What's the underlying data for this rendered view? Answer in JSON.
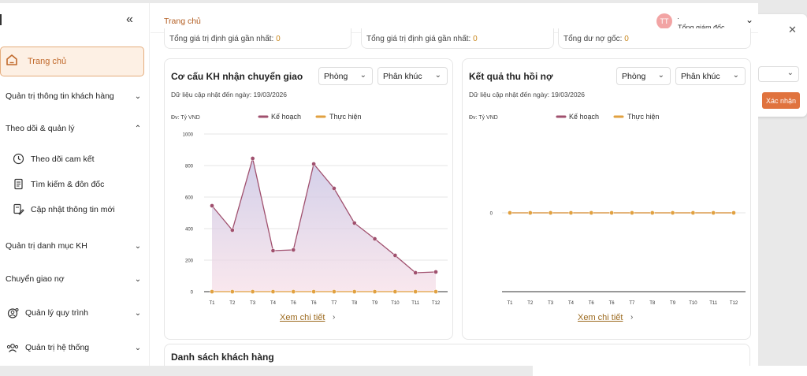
{
  "sidebar": {
    "home_label": "Trang chủ",
    "items": [
      {
        "label": "Quản trị thông tin khách hàng",
        "expanded": false
      },
      {
        "label": "Theo dõi & quản lý",
        "expanded": true
      },
      {
        "label": "Quản trị danh mục KH",
        "expanded": false
      },
      {
        "label": "Chuyển giao nợ",
        "expanded": false
      },
      {
        "label": "Quản lý quy trình",
        "expanded": false,
        "icon": "settings-user-icon"
      },
      {
        "label": "Quản trị hệ thống",
        "expanded": false,
        "icon": "users-icon"
      }
    ],
    "subitems": [
      {
        "label": "Theo dõi cam kết",
        "icon": "clock-icon"
      },
      {
        "label": "Tìm kiếm & đôn đốc",
        "icon": "document-icon"
      },
      {
        "label": "Cập nhật thông tin mới",
        "icon": "edit-document-icon"
      }
    ]
  },
  "header": {
    "breadcrumb": "Trang chủ",
    "avatar_initials": "TT",
    "role": "Tổng giám đốc"
  },
  "stats": [
    {
      "label": "Tổng giá trị định giá gần nhất:",
      "value": "0"
    },
    {
      "label": "Tổng giá trị định giá gần nhất:",
      "value": "0"
    },
    {
      "label": "Tổng dư nợ gốc:",
      "value": "0"
    }
  ],
  "cards": [
    {
      "title": "Cơ cấu KH nhận chuyển giao",
      "dropdown_1": "Phòng",
      "dropdown_2": "Phân khúc",
      "updated": "Dữ liệu cập nhật đến ngày: 19/03/2026",
      "unit": "Đv: Tỷ VND",
      "legend_1": "Kế hoạch",
      "legend_2": "Thực hiện",
      "detail_link": "Xem chi tiết"
    },
    {
      "title": "Kết quả thu hồi nợ",
      "dropdown_1": "Phòng",
      "dropdown_2": "Phân khúc",
      "updated": "Dữ liệu cập nhật đến ngày: 19/03/2026",
      "unit": "Đv: Tỷ VND",
      "legend_1": "Kế hoạch",
      "legend_2": "Thực hiện",
      "detail_link": "Xem chi tiết"
    }
  ],
  "list_title": "Danh sách khách hàng",
  "overlay": {
    "confirm_label": "Xác nhận",
    "close_icon": "close-icon"
  },
  "colors": {
    "accent": "#c16a2c",
    "plan": "#a0506e",
    "actual": "#e1a140",
    "confirm": "#e0733e"
  },
  "chart_data": [
    {
      "type": "line",
      "categories": [
        "T1",
        "T2",
        "T3",
        "T4",
        "T6",
        "T6",
        "T7",
        "T8",
        "T9",
        "T10",
        "T11",
        "T12"
      ],
      "yticks": [
        0,
        200,
        400,
        600,
        800,
        1000
      ],
      "ylim": [
        0,
        1000
      ],
      "grid": true,
      "legend": "top",
      "series": [
        {
          "name": "Kế hoạch",
          "values": [
            545,
            390,
            845,
            260,
            265,
            810,
            655,
            435,
            335,
            230,
            120,
            125
          ],
          "color": "#a0506e",
          "area": true
        },
        {
          "name": "Thực hiện",
          "values": [
            0,
            0,
            0,
            0,
            0,
            0,
            0,
            0,
            0,
            0,
            0,
            0
          ],
          "color": "#e1a140"
        }
      ]
    },
    {
      "type": "line",
      "categories": [
        "T1",
        "T2",
        "T3",
        "T4",
        "T6",
        "T6",
        "T7",
        "T8",
        "T9",
        "T10",
        "T11",
        "T12"
      ],
      "yticks": [
        0
      ],
      "grid": true,
      "legend": "top",
      "series": [
        {
          "name": "Kế hoạch",
          "values": [
            0,
            0,
            0,
            0,
            0,
            0,
            0,
            0,
            0,
            0,
            0,
            0
          ],
          "color": "#a0506e"
        },
        {
          "name": "Thực hiện",
          "values": [
            0,
            0,
            0,
            0,
            0,
            0,
            0,
            0,
            0,
            0,
            0,
            0
          ],
          "color": "#e1a140"
        }
      ]
    }
  ]
}
